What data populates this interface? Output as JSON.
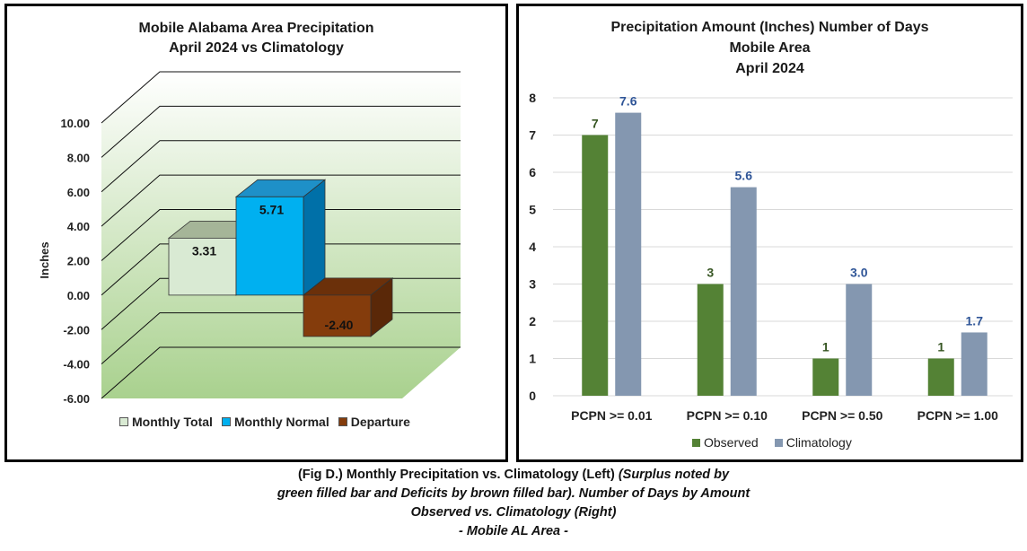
{
  "chart_data": [
    {
      "type": "bar",
      "title": "Mobile Alabama Area Precipitation",
      "subtitle": "April 2024 vs Climatology",
      "ylabel": "Inches",
      "ylim": [
        -6,
        10
      ],
      "yticks": [
        "10.00",
        "8.00",
        "6.00",
        "4.00",
        "2.00",
        "0.00",
        "-2.00",
        "-4.00",
        "-6.00"
      ],
      "grid": true,
      "style": "3d",
      "legend_position": "bottom",
      "series": [
        {
          "name": "Monthly Total",
          "value": 3.31,
          "label": "3.31",
          "color": "#d9ead3"
        },
        {
          "name": "Monthly Normal",
          "value": 5.71,
          "label": "5.71",
          "color": "#00b0f0"
        },
        {
          "name": "Departure",
          "value": -2.4,
          "label": "-2.40",
          "color": "#843c0c"
        }
      ]
    },
    {
      "type": "bar",
      "title": "Precipitation Amount (Inches) Number of Days",
      "subtitle": "Mobile Area",
      "subtitle2": "April 2024",
      "ylim": [
        0,
        8
      ],
      "yticks": [
        "8",
        "7",
        "6",
        "5",
        "4",
        "3",
        "2",
        "1",
        "0"
      ],
      "grid": true,
      "legend_position": "bottom",
      "categories": [
        "PCPN >= 0.01",
        "PCPN >= 0.10",
        "PCPN >= 0.50",
        "PCPN >= 1.00"
      ],
      "series": [
        {
          "name": "Observed",
          "color": "#548235",
          "values": [
            7,
            3,
            1,
            1
          ],
          "labels": [
            "7",
            "3",
            "1",
            "1"
          ]
        },
        {
          "name": "Climatology",
          "color": "#8497b0",
          "values": [
            7.6,
            5.6,
            3.0,
            1.7
          ],
          "labels": [
            "7.6",
            "5.6",
            "3.0",
            "1.7"
          ]
        }
      ]
    }
  ],
  "caption": {
    "line1_bold": "(Fig D.) Monthly Precipitation vs. Climatology (Left) ",
    "line1_italic": "(Surplus noted by",
    "line2": "green filled bar and Deficits by brown filled bar). Number of Days by Amount",
    "line3": "Observed vs. Climatology (Right)",
    "line4": "- Mobile AL Area -"
  }
}
